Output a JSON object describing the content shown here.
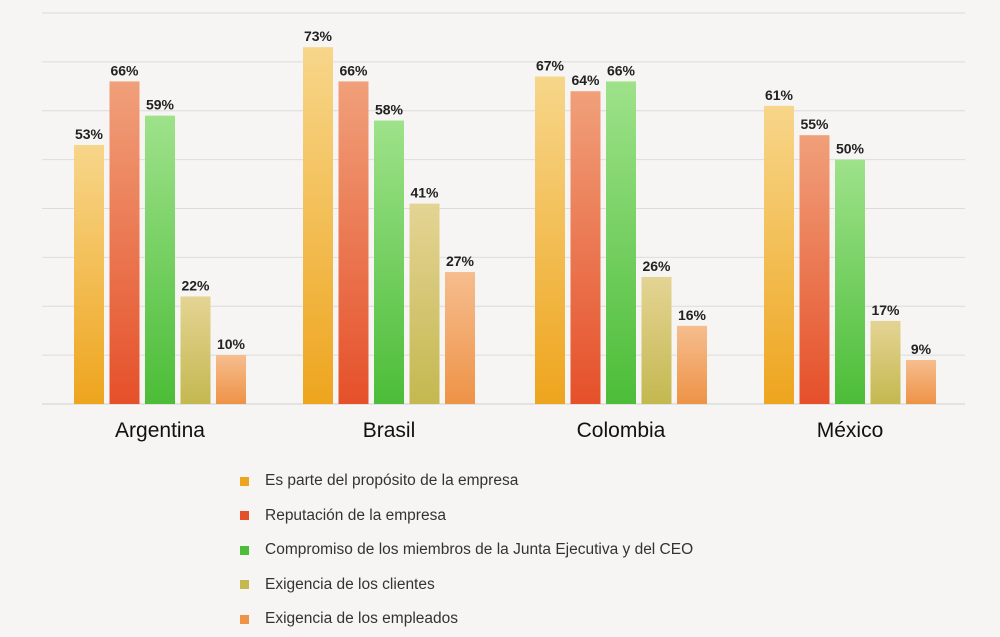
{
  "chart_data": {
    "type": "bar",
    "categories": [
      "Argentina",
      "Brasil",
      "Colombia",
      "México"
    ],
    "ylim": [
      0,
      80
    ],
    "grid": true,
    "value_suffix": "%",
    "legend_position": "bottom",
    "series": [
      {
        "name": "Es parte del propósito de la empresa",
        "color": "#eea51e",
        "values": [
          53,
          73,
          67,
          61
        ]
      },
      {
        "name": "Reputación de la empresa",
        "color": "#e5502a",
        "values": [
          66,
          66,
          64,
          55
        ]
      },
      {
        "name": "Compromiso de los miembros de la Junta Ejecutiva y del CEO",
        "color": "#4cbd38",
        "values": [
          59,
          58,
          66,
          50
        ]
      },
      {
        "name": "Exigencia de los clientes",
        "color": "#c4b850",
        "values": [
          22,
          41,
          26,
          17
        ]
      },
      {
        "name": "Exigencia de los empleados",
        "color": "#ee9347",
        "values": [
          10,
          27,
          16,
          9
        ]
      }
    ]
  }
}
